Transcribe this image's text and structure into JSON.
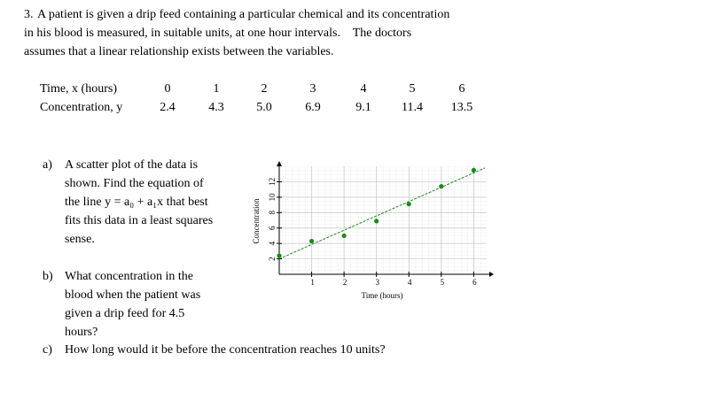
{
  "question": {
    "number": "3.",
    "lines": [
      "A patient is given a drip feed containing a particular chemical and its concentration",
      "in his blood is measured, in suitable units, at one hour intervals.    The doctors",
      "assumes that a linear relationship exists between the variables."
    ]
  },
  "table": {
    "row_labels": [
      "Time, x (hours)",
      "Concentration, y"
    ],
    "rows": [
      [
        "0",
        "1",
        "2",
        "3",
        "4",
        "5",
        "6"
      ],
      [
        "2.4",
        "4.3",
        "5.0",
        "6.9",
        "9.1",
        "11.4",
        "13.5"
      ]
    ]
  },
  "parts": [
    {
      "label": "a)",
      "text": "A scatter plot of the data is shown. Find the equation of the line y = a₀ + a₁x that best fits this data in a least squares sense."
    },
    {
      "label": "b)",
      "text": "What concentration in the blood when the patient was given a drip feed for 4.5 hours?"
    },
    {
      "label": "c)",
      "text": "How long would it be before the concentration reaches 10 units?"
    }
  ],
  "chart_data": {
    "type": "scatter",
    "x_label": "Time (hours)",
    "y_label": "Concentration",
    "x": [
      0,
      1,
      2,
      3,
      4,
      5,
      6
    ],
    "values": [
      2.4,
      4.3,
      5.0,
      6.9,
      9.1,
      11.4,
      13.5
    ],
    "color": "#1a8a1a",
    "trendline": {
      "x": [
        0,
        6.35
      ],
      "values": [
        2.0,
        13.8
      ],
      "color": "#1a8a1a"
    },
    "xlim": [
      0,
      6.4
    ],
    "ylim": [
      0,
      14
    ],
    "xticks": [
      1,
      2,
      3,
      4,
      5,
      6
    ],
    "yticks": [
      2,
      4,
      6,
      8,
      10,
      12
    ],
    "grid": true
  }
}
